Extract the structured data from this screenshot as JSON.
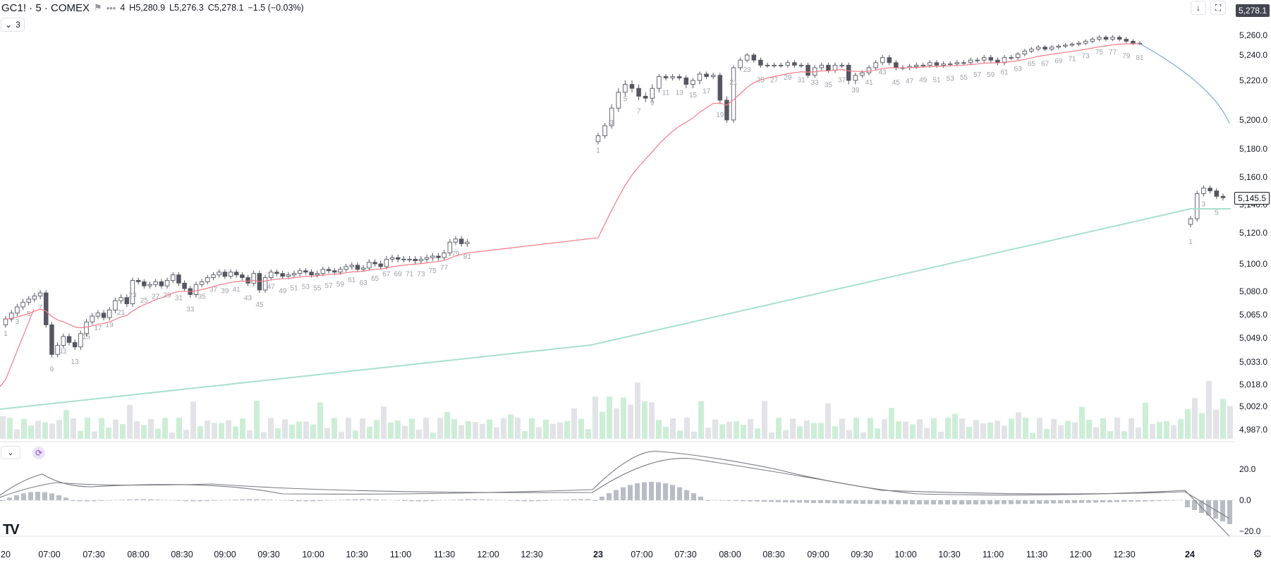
{
  "header": {
    "symbol": "GC1! · 5 · COMEX",
    "open_fragment": "4",
    "high_label": "H",
    "high": "5,280.9",
    "low_label": "L",
    "low": "5,276.3",
    "close_label": "C",
    "close": "5,278.1",
    "change": "−1.5 (−0.03%)",
    "more_icon": "more-dots-icon",
    "flag_icon": "flag-icon"
  },
  "controls": {
    "collapse_count": "3",
    "download_icon": "arrow-down-icon",
    "fullscreen_icon": "expand-icon",
    "sync_icon": "sync-icon",
    "settings_icon": "gear-icon",
    "logo_text": "TV"
  },
  "price_tags": {
    "last": "5,278.1",
    "current": "5,145.5"
  },
  "colors": {
    "ema_fast": "#f57a86",
    "ema_slow": "#a8e0cf",
    "projection": "#7aa7e0",
    "candle_down": "#545661",
    "candle_up_fill": "#ffffff",
    "vol_green": "#cdeed6",
    "vol_grey": "#e2e3e7",
    "macd_hist": "#b9bcc4"
  },
  "chart_data": [
    {
      "type": "line",
      "title": "",
      "y_axis_ticks": [
        "5,260.0",
        "5,240.0",
        "5,220.0",
        "5,200.0",
        "5,180.0",
        "5,160.0",
        "5,140.0",
        "5,120.0",
        "5,100.0",
        "5,080.0",
        "5,065.0",
        "5,049.0",
        "5,033.0",
        "5,018.0",
        "5,002.0",
        "4,987.0"
      ],
      "x_axis_ticks": [
        "20",
        "07:00",
        "07:30",
        "08:00",
        "08:30",
        "09:00",
        "09:30",
        "10:00",
        "10:30",
        "11:00",
        "11:30",
        "12:00",
        "12:30",
        "23",
        "07:00",
        "07:30",
        "08:00",
        "08:30",
        "09:00",
        "09:30",
        "10:00",
        "10:30",
        "11:00",
        "11:30",
        "12:00",
        "12:30",
        "24"
      ],
      "bar_count_labels": [
        "1",
        "3",
        "5",
        "7",
        "9",
        "11",
        "13",
        "15",
        "17",
        "19",
        "21",
        "23",
        "25",
        "27",
        "29",
        "31",
        "33",
        "35",
        "37",
        "39",
        "41",
        "43",
        "45",
        "47",
        "49",
        "51",
        "53",
        "55",
        "57",
        "59",
        "61",
        "63",
        "65",
        "67",
        "69",
        "71",
        "73",
        "75",
        "77",
        "79",
        "81"
      ],
      "session1": [
        5062,
        5066,
        5070,
        5073,
        5075,
        5077,
        5079,
        5058,
        5038,
        5044,
        5050,
        5046,
        5043,
        5052,
        5060,
        5064,
        5066,
        5063,
        5068,
        5074,
        5076,
        5072,
        5088,
        5087,
        5084,
        5085,
        5087,
        5084,
        5088,
        5092,
        5086,
        5082,
        5078,
        5085,
        5087,
        5090,
        5092,
        5094,
        5091,
        5094,
        5092,
        5090,
        5086,
        5093,
        5081,
        5090,
        5094,
        5093,
        5091,
        5092,
        5093,
        5095,
        5094,
        5092,
        5093,
        5096,
        5095,
        5094,
        5096,
        5098,
        5099,
        5096,
        5097,
        5101,
        5100,
        5098,
        5103,
        5104,
        5103,
        5103,
        5103,
        5102,
        5103,
        5104,
        5105,
        5104,
        5107,
        5114,
        5116,
        5113,
        5114
      ],
      "session2": [
        5189,
        5196,
        5206,
        5214,
        5218,
        5216,
        5212,
        5211,
        5216,
        5223,
        5222,
        5223,
        5222,
        5218,
        5220,
        5225,
        5223,
        5224,
        5210,
        5200,
        5230,
        5236,
        5240,
        5236,
        5232,
        5232,
        5232,
        5232,
        5234,
        5232,
        5232,
        5224,
        5230,
        5232,
        5228,
        5232,
        5232,
        5220,
        5224,
        5226,
        5230,
        5234,
        5238,
        5234,
        5230,
        5230,
        5231,
        5232,
        5232,
        5234,
        5232,
        5233,
        5233,
        5234,
        5234,
        5236,
        5236,
        5238,
        5236,
        5234,
        5238,
        5238,
        5241,
        5244,
        5246,
        5248,
        5246,
        5248,
        5249,
        5250,
        5251,
        5252,
        5254,
        5256,
        5258,
        5256,
        5258,
        5256,
        5254,
        5252,
        5252
      ],
      "session3": [
        5130,
        5148,
        5152,
        5150,
        5146,
        5145
      ],
      "ema_fast_note": "",
      "ema_slow_note": ""
    },
    {
      "type": "bar",
      "title": "",
      "description": "",
      "y_axis_ticks": [
        "20.0",
        "0.0",
        "−20.0"
      ]
    }
  ]
}
